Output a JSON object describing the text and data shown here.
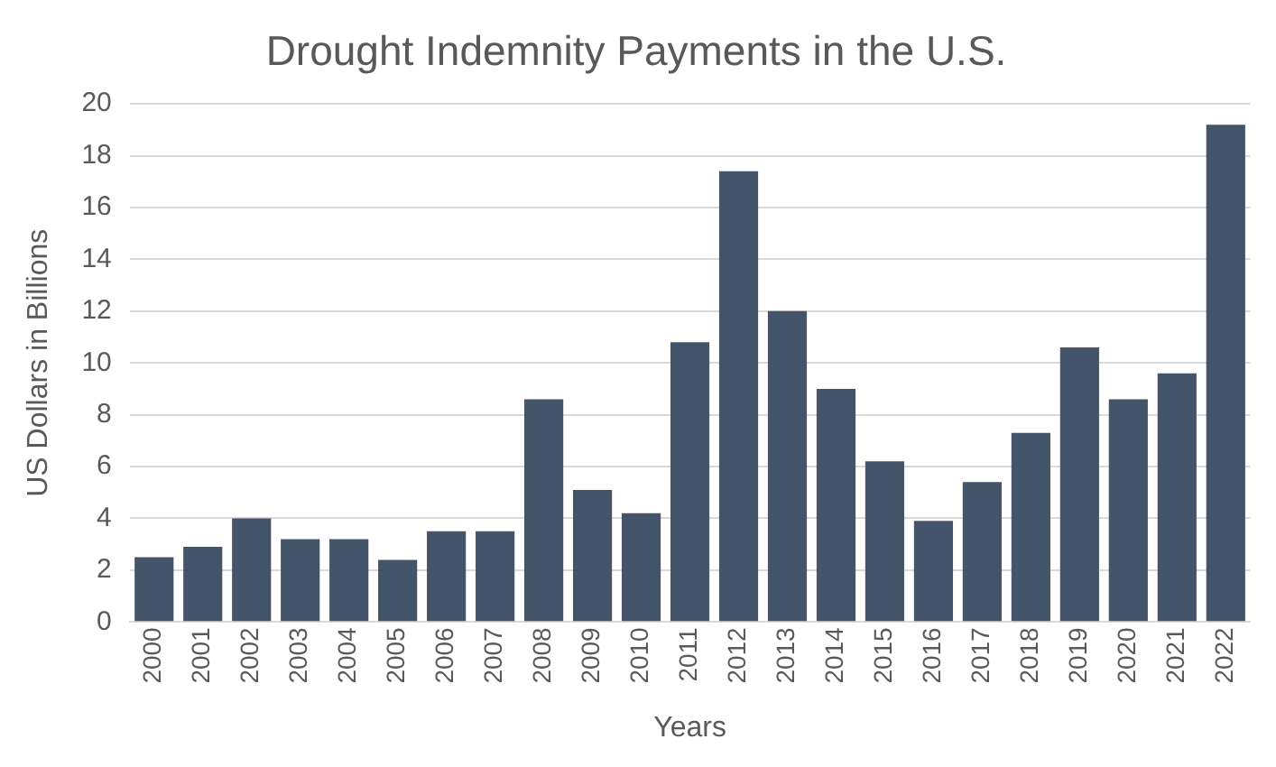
{
  "chart_data": {
    "type": "bar",
    "title": "Drought Indemnity Payments in the U.S.",
    "xlabel": "Years",
    "ylabel": "US Dollars in Billions",
    "categories": [
      "2000",
      "2001",
      "2002",
      "2003",
      "2004",
      "2005",
      "2006",
      "2007",
      "2008",
      "2009",
      "2010",
      "2011",
      "2012",
      "2013",
      "2014",
      "2015",
      "2016",
      "2017",
      "2018",
      "2019",
      "2020",
      "2021",
      "2022"
    ],
    "values": [
      2.5,
      2.9,
      4.0,
      3.2,
      3.2,
      2.4,
      3.5,
      3.5,
      8.6,
      5.1,
      4.2,
      10.8,
      17.4,
      12.0,
      9.0,
      6.2,
      3.9,
      5.4,
      7.3,
      10.6,
      8.6,
      9.6,
      19.2
    ],
    "color": "#44546a",
    "ylim": [
      0,
      20
    ],
    "yticks": [
      0,
      2,
      4,
      6,
      8,
      10,
      12,
      14,
      16,
      18,
      20
    ],
    "grid": "y",
    "legend": false
  }
}
